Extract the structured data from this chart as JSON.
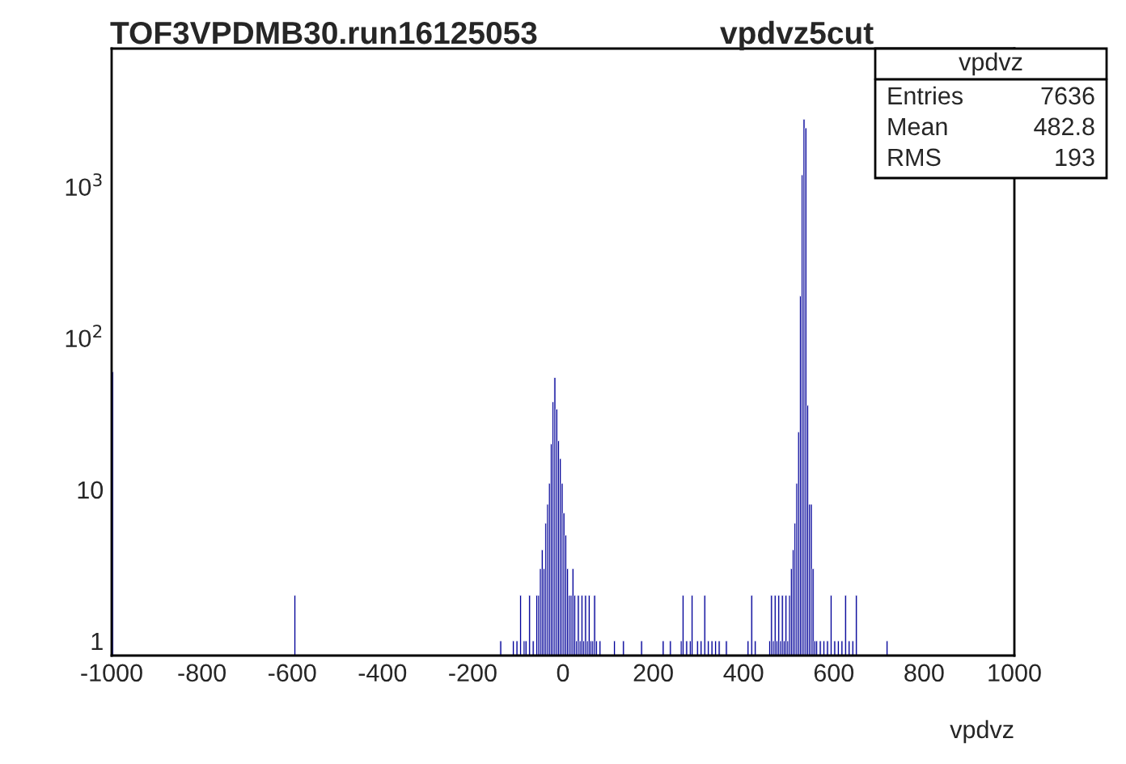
{
  "chart_data": {
    "type": "histogram",
    "title": "TOF3VPDMB30.run16125053",
    "subtitle": "vpdvz5cut",
    "xlabel": "vpdvz",
    "annotations": [
      "vpdvz",
      "Entries",
      "7636",
      "Mean",
      "482.8",
      "RMS",
      "193"
    ],
    "color": "#000099",
    "bins": [
      -1000,
      -996,
      -596,
      -592,
      -140,
      -136,
      -112,
      -108,
      -104,
      -100,
      -96,
      -92,
      -88,
      -84,
      -80,
      -76,
      -72,
      -68,
      -64,
      -60,
      -56,
      -52,
      -48,
      -44,
      -40,
      -36,
      -32,
      -28,
      -24,
      -20,
      -16,
      -12,
      -8,
      -4,
      0,
      4,
      8,
      12,
      16,
      20,
      24,
      28,
      32,
      36,
      40,
      44,
      48,
      52,
      56,
      60,
      64,
      68,
      72,
      76,
      80,
      84,
      112,
      116,
      132,
      136,
      172,
      176,
      220,
      224,
      236,
      240,
      260,
      264,
      268,
      272,
      276,
      280,
      284,
      288,
      296,
      300,
      304,
      308,
      312,
      316,
      320,
      324,
      328,
      332,
      336,
      340,
      344,
      348,
      360,
      364,
      408,
      412,
      416,
      420,
      424,
      428,
      456,
      460,
      464,
      468,
      472,
      476,
      480,
      484,
      488,
      492,
      496,
      500,
      504,
      508,
      512,
      516,
      520,
      524,
      528,
      532,
      536,
      540,
      544,
      548,
      552,
      556,
      560,
      564,
      568,
      572,
      576,
      580,
      584,
      588,
      592,
      596,
      600,
      604,
      608,
      612,
      616,
      620,
      624,
      628,
      632,
      636,
      640,
      644,
      648,
      652,
      716,
      720
    ],
    "values": [
      60,
      null,
      2,
      null,
      1,
      null,
      1,
      null,
      1,
      null,
      2,
      null,
      1,
      1,
      null,
      2,
      null,
      1,
      null,
      2,
      2,
      3,
      4,
      3,
      6,
      8,
      11,
      20,
      38,
      55,
      34,
      21,
      16,
      11,
      7,
      5,
      3,
      2,
      2,
      3,
      2,
      1,
      2,
      1,
      2,
      1,
      2,
      1,
      2,
      1,
      1,
      2,
      1,
      null,
      1,
      null,
      1,
      null,
      1,
      null,
      1,
      null,
      1,
      null,
      1,
      null,
      1,
      2,
      null,
      1,
      null,
      1,
      2,
      null,
      1,
      null,
      1,
      null,
      2,
      null,
      1,
      null,
      1,
      null,
      1,
      null,
      1,
      null,
      1,
      null,
      1,
      null,
      2,
      null,
      1,
      null,
      1,
      2,
      1,
      2,
      1,
      2,
      1,
      2,
      1,
      2,
      1,
      2,
      3,
      4,
      6,
      11,
      24,
      190,
      1200,
      2800,
      2450,
      36,
      8,
      8,
      3,
      1,
      1,
      null,
      1,
      null,
      1,
      null,
      1,
      null,
      2,
      null,
      1,
      null,
      1,
      null,
      1,
      null,
      2,
      null,
      1,
      null,
      1,
      null,
      2,
      null,
      1
    ],
    "log": "y",
    "xlim": [
      -1000,
      1000
    ],
    "xticks": [
      -1000,
      -800,
      -600,
      -400,
      -200,
      0,
      200,
      400,
      600,
      800,
      1000
    ],
    "ylim": [
      0.8,
      8200
    ],
    "yticks": [
      1,
      10,
      {
        "value": 100,
        "label": "10$^{2}$"
      },
      {
        "value": 1000,
        "label": "10$^{3}$"
      }
    ],
    "grid": false,
    "legend": false
  }
}
